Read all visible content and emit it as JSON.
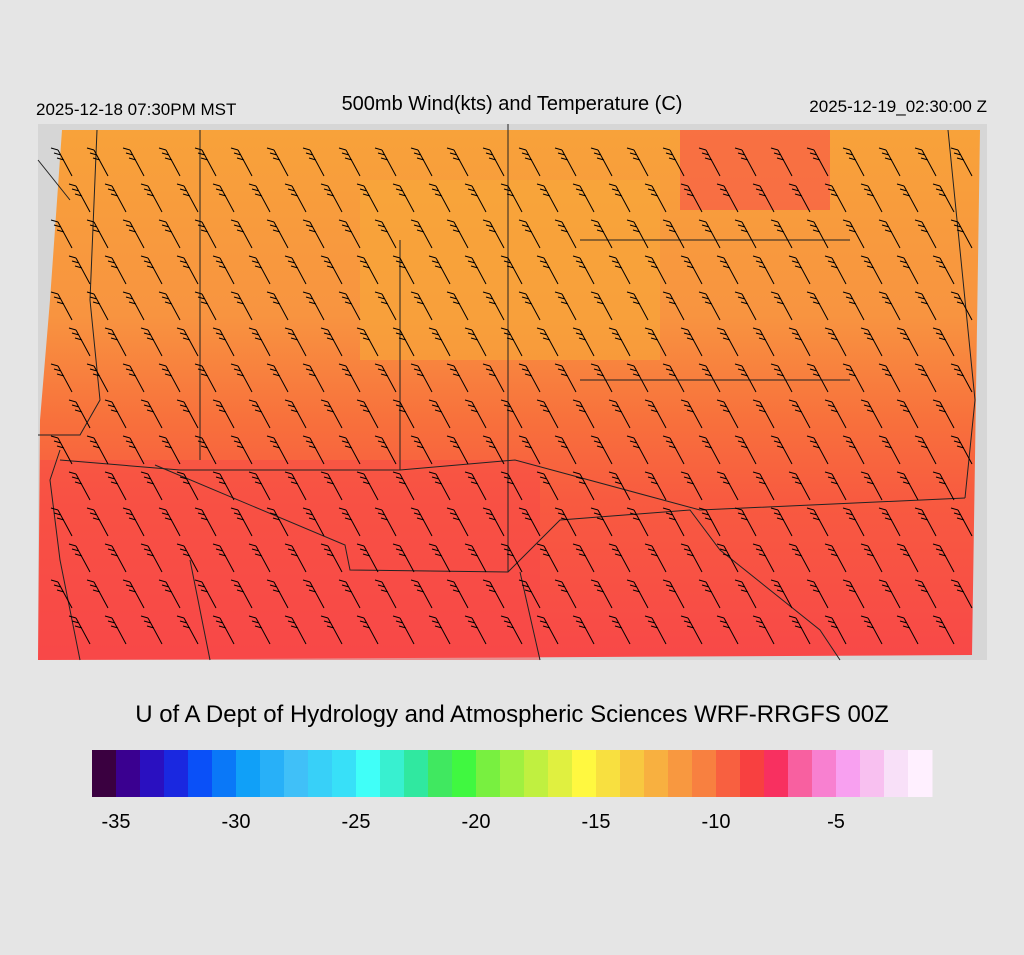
{
  "header": {
    "local_time": "2025-12-18 07:30PM MST",
    "title": "500mb Wind(kts) and Temperature (C)",
    "valid_time": "2025-12-19_02:30:00 Z"
  },
  "footer": {
    "credit": "U of A Dept of Hydrology and Atmospheric Sciences WRF-RRGFS 00Z"
  },
  "colorbar": {
    "range": [
      -36,
      -1
    ],
    "colors": [
      "#3a0040",
      "#3a0090",
      "#2a10c0",
      "#1a28e0",
      "#0a50f8",
      "#0a78f8",
      "#10a0f8",
      "#28b0f8",
      "#40c0f8",
      "#38d0f8",
      "#38e0f8",
      "#40fff8",
      "#38f0d0",
      "#30e8a0",
      "#40e860",
      "#40f840",
      "#78f040",
      "#a0f040",
      "#c0f040",
      "#e0f040",
      "#fff840",
      "#f8e040",
      "#f8c840",
      "#f8b040",
      "#f89840",
      "#f88040",
      "#f86040",
      "#f84040",
      "#f83060",
      "#f860a0",
      "#f880d0",
      "#f8a0f0",
      "#f8c0f0",
      "#f8e0f8",
      "#fff0ff"
    ],
    "ticks": [
      -35,
      -30,
      -25,
      -20,
      -15,
      -10,
      -5
    ]
  }
}
